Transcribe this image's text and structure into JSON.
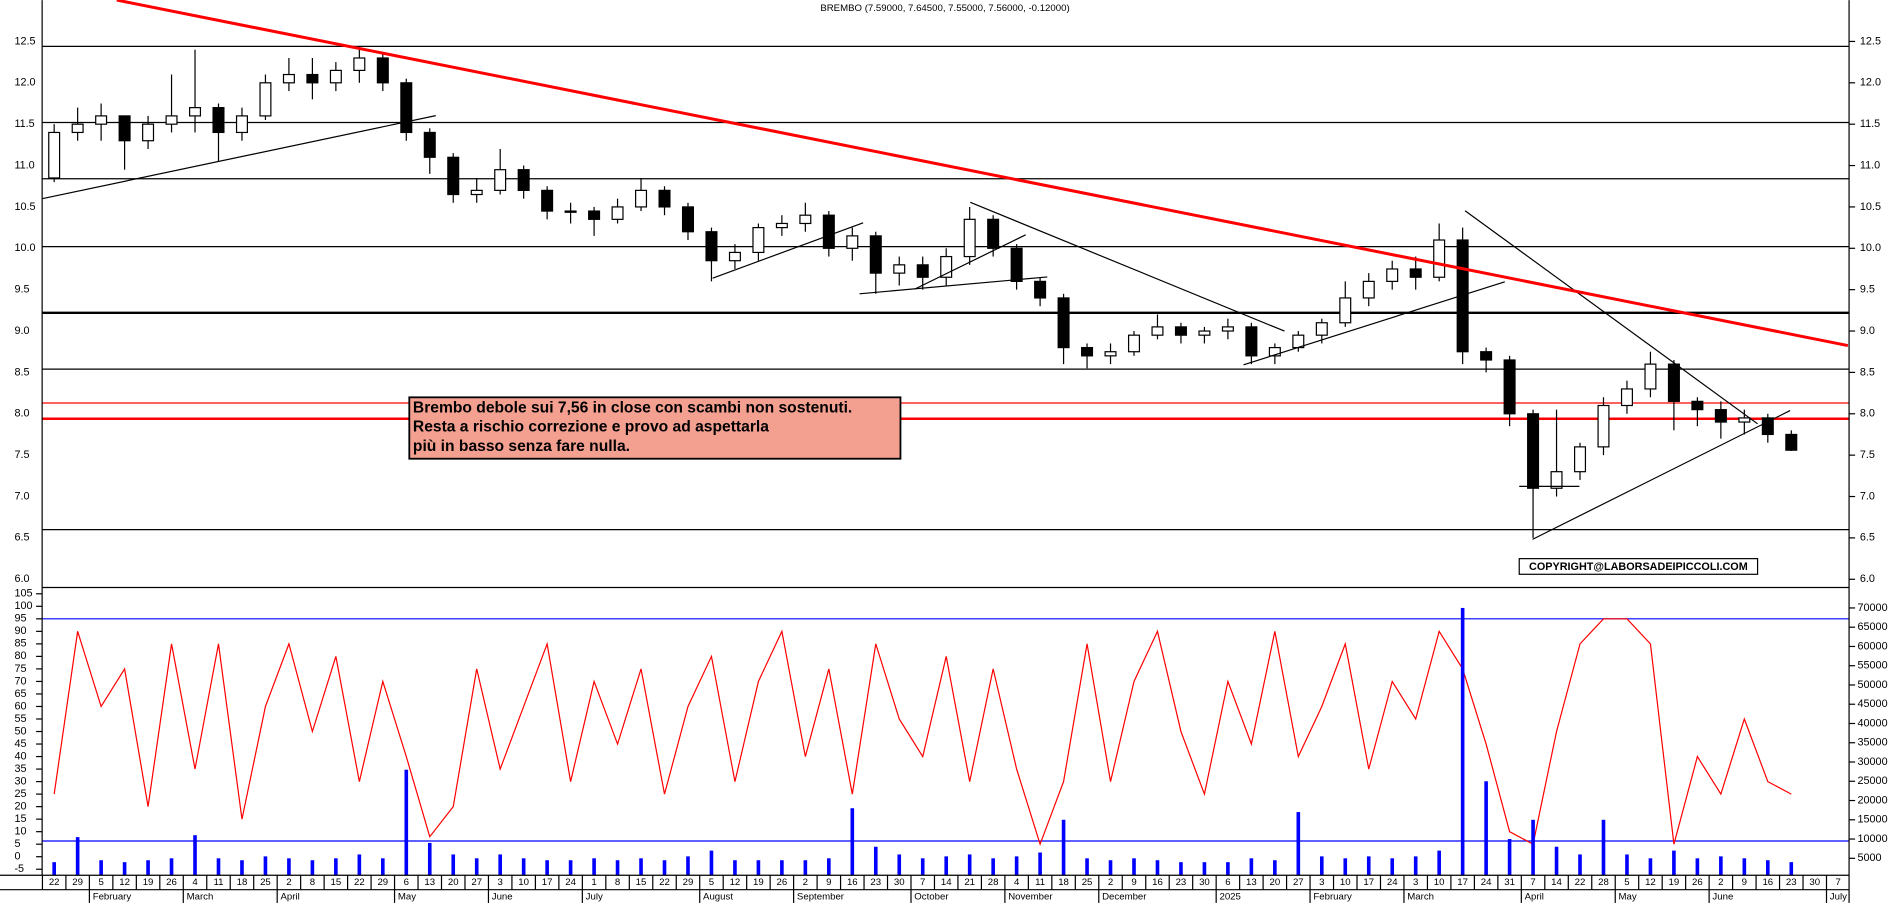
{
  "chart_data": [
    {
      "type": "candlestick",
      "title": "BREMBO (7.59000, 7.64500, 7.55000, 7.56000, -0.12000)",
      "categories": [
        "22",
        "29",
        "5",
        "12",
        "19",
        "26",
        "4",
        "11",
        "18",
        "25",
        "2",
        "8",
        "15",
        "22",
        "29",
        "6",
        "13",
        "20",
        "27",
        "3",
        "10",
        "17",
        "24",
        "1",
        "8",
        "15",
        "22",
        "29",
        "5",
        "12",
        "19",
        "26",
        "2",
        "9",
        "16",
        "23",
        "30",
        "7",
        "14",
        "21",
        "28",
        "4",
        "11",
        "18",
        "25",
        "2",
        "9",
        "16",
        "23",
        "30",
        "6",
        "13",
        "20",
        "27",
        "3",
        "10",
        "17",
        "24",
        "3",
        "10",
        "17",
        "24",
        "31",
        "7",
        "14",
        "22",
        "28",
        "5",
        "12",
        "19",
        "26",
        "2",
        "9",
        "16",
        "23",
        "30",
        "7"
      ],
      "month_labels": [
        null,
        null,
        "February",
        null,
        null,
        null,
        "March",
        null,
        null,
        null,
        "April",
        null,
        null,
        null,
        null,
        "May",
        null,
        null,
        null,
        "June",
        null,
        null,
        null,
        "July",
        null,
        null,
        null,
        null,
        "August",
        null,
        null,
        null,
        "September",
        null,
        null,
        null,
        null,
        "October",
        null,
        null,
        null,
        "November",
        null,
        null,
        null,
        "December",
        null,
        null,
        null,
        null,
        "2025",
        null,
        null,
        null,
        "February",
        null,
        null,
        null,
        "March",
        null,
        null,
        null,
        null,
        "April",
        null,
        null,
        null,
        "May",
        null,
        null,
        null,
        "June",
        null,
        null,
        null,
        null,
        "July"
      ],
      "open": [
        10.85,
        11.4,
        11.5,
        11.6,
        11.3,
        11.5,
        11.6,
        11.7,
        11.4,
        11.6,
        12.0,
        12.1,
        12.0,
        12.15,
        12.3,
        12.0,
        11.4,
        11.1,
        10.65,
        10.7,
        10.95,
        10.7,
        10.45,
        10.45,
        10.35,
        10.5,
        10.7,
        10.5,
        10.2,
        9.85,
        9.95,
        10.25,
        10.3,
        10.4,
        10.0,
        10.15,
        9.7,
        9.8,
        9.65,
        9.9,
        10.35,
        10.0,
        9.6,
        9.4,
        8.8,
        8.7,
        8.75,
        8.95,
        9.05,
        8.95,
        9.0,
        9.05,
        8.7,
        8.8,
        8.95,
        9.1,
        9.4,
        9.6,
        9.75,
        9.65,
        10.1,
        8.75,
        8.65,
        8.0,
        7.1,
        7.3,
        7.6,
        8.1,
        8.3,
        8.6,
        8.15,
        8.05,
        7.9,
        7.95,
        7.75,
        null,
        null
      ],
      "high": [
        11.5,
        11.7,
        11.75,
        11.6,
        11.6,
        12.1,
        12.4,
        11.75,
        11.7,
        12.1,
        12.3,
        12.3,
        12.25,
        12.4,
        12.35,
        12.05,
        11.45,
        11.15,
        10.85,
        11.2,
        11.0,
        10.75,
        10.55,
        10.5,
        10.6,
        10.85,
        10.75,
        10.55,
        10.25,
        10.05,
        10.3,
        10.4,
        10.55,
        10.45,
        10.25,
        10.2,
        9.9,
        9.9,
        10.0,
        10.5,
        10.4,
        10.05,
        9.65,
        9.45,
        8.85,
        8.85,
        9.0,
        9.2,
        9.1,
        9.05,
        9.15,
        9.1,
        8.85,
        9.0,
        9.15,
        9.6,
        9.7,
        9.85,
        9.9,
        10.3,
        10.25,
        8.8,
        8.7,
        8.05,
        8.05,
        7.65,
        8.2,
        8.4,
        8.75,
        8.65,
        8.2,
        8.15,
        8.05,
        8.0,
        7.8,
        null,
        null
      ],
      "low": [
        10.8,
        11.3,
        11.3,
        10.95,
        11.2,
        11.4,
        11.4,
        11.05,
        11.3,
        11.55,
        11.9,
        11.8,
        11.9,
        12.0,
        11.9,
        11.3,
        10.9,
        10.55,
        10.55,
        10.65,
        10.6,
        10.35,
        10.3,
        10.15,
        10.3,
        10.45,
        10.4,
        10.1,
        9.6,
        9.75,
        9.85,
        10.15,
        10.2,
        9.9,
        9.85,
        9.45,
        9.55,
        9.5,
        9.55,
        9.8,
        9.9,
        9.5,
        9.3,
        8.6,
        8.55,
        8.6,
        8.7,
        8.9,
        8.85,
        8.85,
        8.9,
        8.6,
        8.6,
        8.75,
        8.85,
        9.05,
        9.3,
        9.5,
        9.5,
        9.6,
        8.6,
        8.5,
        7.85,
        6.5,
        7.0,
        7.2,
        7.5,
        8.0,
        8.2,
        7.8,
        7.85,
        7.7,
        7.75,
        7.65,
        7.55,
        null,
        null
      ],
      "close": [
        11.4,
        11.5,
        11.6,
        11.3,
        11.5,
        11.6,
        11.7,
        11.4,
        11.6,
        12.0,
        12.1,
        12.0,
        12.15,
        12.3,
        12.0,
        11.4,
        11.1,
        10.65,
        10.7,
        10.95,
        10.7,
        10.45,
        10.45,
        10.35,
        10.5,
        10.7,
        10.5,
        10.2,
        9.85,
        9.95,
        10.25,
        10.3,
        10.4,
        10.0,
        10.15,
        9.7,
        9.8,
        9.65,
        9.9,
        10.35,
        10.0,
        9.6,
        9.4,
        8.8,
        8.7,
        8.75,
        8.95,
        9.05,
        8.95,
        9.0,
        9.05,
        8.7,
        8.8,
        8.95,
        9.1,
        9.4,
        9.6,
        9.75,
        9.65,
        10.1,
        8.75,
        8.65,
        8.0,
        7.1,
        7.3,
        7.6,
        8.1,
        8.3,
        8.6,
        8.15,
        8.05,
        7.9,
        7.95,
        7.75,
        7.56,
        null,
        null
      ],
      "up_color": "#ffffff",
      "down_color": "#000000",
      "ylim": [
        5.9,
        13.0
      ],
      "yticks": [
        {
          "value": 6,
          "label": "6.0"
        },
        6.5,
        {
          "value": 7,
          "label": "7.0"
        },
        7.5,
        {
          "value": 8,
          "label": "8.0"
        },
        8.5,
        {
          "value": 9,
          "label": "9.0"
        },
        9.5,
        {
          "value": 10,
          "label": "10.0"
        },
        10.5,
        {
          "value": 11,
          "label": "11.0"
        },
        11.5,
        {
          "value": 12,
          "label": "12.0"
        },
        12.5
      ],
      "levels": [
        {
          "value": 12.44,
          "color": "#000000",
          "width": 1
        },
        {
          "value": 11.52,
          "color": "#000000",
          "width": 1
        },
        {
          "value": 10.84,
          "color": "#000000",
          "width": 1
        },
        {
          "value": 10.02,
          "color": "#000000",
          "width": 1
        },
        {
          "value": 9.22,
          "color": "#000000",
          "width": 2
        },
        {
          "value": 8.54,
          "color": "#000000",
          "width": 1
        },
        {
          "value": 8.13,
          "color": "#ff0000",
          "width": 1
        },
        {
          "value": 7.94,
          "color": "#ff0000",
          "width": 2
        },
        {
          "value": 6.6,
          "color": "#000000",
          "width": 1
        }
      ],
      "annotation": [
        "Brembo debole sui 7,56 in close con scambi non sostenuti.",
        "Resta a rischio correzione e provo ad aspettarla",
        "più in basso senza fare nulla."
      ],
      "copyright": "COPYRIGHT@LABORSADEIPICCOLI.COM"
    },
    {
      "type": "line",
      "series": [
        {
          "type": "line",
          "color": "#ff0000",
          "values": [
            25,
            90,
            60,
            75,
            20,
            85,
            35,
            85,
            15,
            60,
            85,
            50,
            80,
            30,
            70,
            40,
            8,
            20,
            75,
            35,
            60,
            85,
            30,
            70,
            45,
            75,
            25,
            60,
            80,
            30,
            70,
            90,
            40,
            75,
            25,
            85,
            55,
            40,
            80,
            30,
            75,
            35,
            5,
            30,
            85,
            30,
            70,
            90,
            50,
            25,
            70,
            45,
            90,
            40,
            60,
            85,
            35,
            70,
            55,
            90,
            75,
            45,
            10,
            5,
            50,
            85,
            95,
            95,
            85,
            5,
            40,
            25,
            55,
            30,
            25,
            null,
            null
          ]
        },
        {
          "type": "bar",
          "axis": "y2",
          "color": "#0000ff",
          "values": [
            4000,
            10500,
            4500,
            4000,
            4500,
            5000,
            11000,
            5000,
            4500,
            5500,
            5000,
            4500,
            5000,
            6000,
            5000,
            28000,
            9000,
            6000,
            5000,
            6000,
            5000,
            4500,
            4500,
            5000,
            4500,
            5000,
            4500,
            5500,
            7000,
            4500,
            4500,
            4500,
            4500,
            5000,
            18000,
            8000,
            6000,
            5000,
            5500,
            6000,
            5000,
            5500,
            6500,
            15000,
            5000,
            4500,
            5000,
            4500,
            4000,
            4000,
            4000,
            5000,
            4500,
            17000,
            5500,
            5000,
            5500,
            5000,
            5500,
            7000,
            70000,
            25000,
            10000,
            15000,
            8000,
            6000,
            15000,
            6000,
            5000,
            7000,
            5000,
            5500,
            5000,
            4500,
            4000,
            null,
            null
          ]
        }
      ],
      "ylim": [
        -7.4,
        107.5
      ],
      "yticks": [
        -5,
        0,
        5,
        10,
        15,
        20,
        25,
        30,
        35,
        40,
        45,
        50,
        55,
        60,
        65,
        70,
        75,
        80,
        85,
        90,
        95,
        100,
        105
      ],
      "y2lim": [
        600,
        75300
      ],
      "y2ticks": [
        5000,
        10000,
        15000,
        20000,
        25000,
        30000,
        35000,
        40000,
        45000,
        50000,
        55000,
        60000,
        65000,
        70000
      ],
      "levels": [
        {
          "axis": "y",
          "value": 95,
          "color": "#0000ff"
        },
        {
          "axis": "y2",
          "value": 9500,
          "color": "#0000ff"
        }
      ]
    }
  ]
}
